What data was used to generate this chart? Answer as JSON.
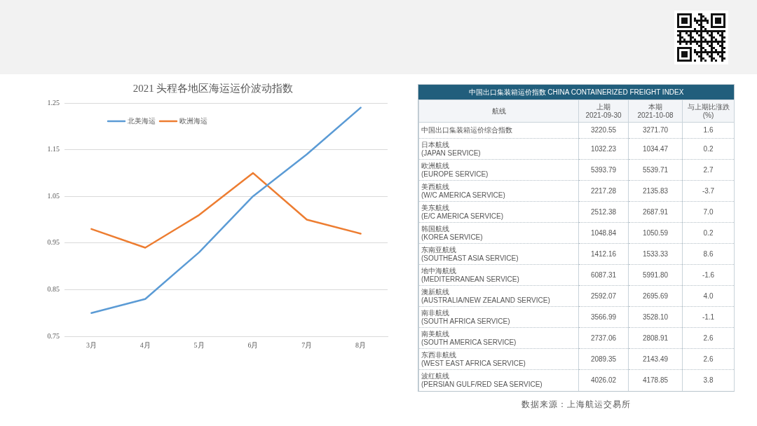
{
  "chart_data": [
    {
      "type": "line",
      "title": "2021 头程各地区海运运价波动指数",
      "categories": [
        "3月",
        "4月",
        "5月",
        "6月",
        "7月",
        "8月"
      ],
      "series": [
        {
          "name": "北美海运",
          "color": "#5b9bd5",
          "values": [
            0.8,
            0.83,
            0.93,
            1.05,
            1.14,
            1.24
          ]
        },
        {
          "name": "欧洲海运",
          "color": "#ed7d31",
          "values": [
            0.98,
            0.94,
            1.01,
            1.1,
            1.0,
            0.97
          ]
        }
      ],
      "ylim": [
        0.75,
        1.25
      ],
      "yticks": [
        0.75,
        0.85,
        0.95,
        1.05,
        1.15,
        1.25
      ],
      "grid": "y",
      "legend": "top left",
      "marker": "none",
      "line_style": "solid"
    },
    {
      "type": "other",
      "title": "中国出口集装箱运价指数 CHINA CONTAINERIZED FREIGHT INDEX",
      "ylabel": "航线",
      "categories": [
        "中国出口集装箱运价综合指数",
        "日本航线\n(JAPAN SERVICE)",
        "欧洲航线\n(EUROPE SERVICE)",
        "美西航线\n(W/C AMERICA SERVICE)",
        "美东航线\n(E/C AMERICA SERVICE)",
        "韩国航线\n(KOREA SERVICE)",
        "东南亚航线\n(SOUTHEAST ASIA SERVICE)",
        "地中海航线\n(MEDITERRANEAN SERVICE)",
        "澳新航线\n(AUSTRALIA/NEW ZEALAND SERVICE)",
        "南非航线\n(SOUTH AFRICA SERVICE)",
        "南美航线\n(SOUTH AMERICA SERVICE)",
        "东西非航线\n(WEST EAST AFRICA SERVICE)",
        "波红航线\n(PERSIAN GULF/RED SEA SERVICE)"
      ],
      "series": [
        {
          "name": "上期\n2021-09-30",
          "values": [
            3220.55,
            1032.23,
            5393.79,
            2217.28,
            2512.38,
            1048.84,
            1412.16,
            6087.31,
            2592.07,
            3566.99,
            2737.06,
            2089.35,
            4026.02
          ],
          "value_labels": [
            "3220.55",
            "1032.23",
            "5393.79",
            "2217.28",
            "2512.38",
            "1048.84",
            "1412.16",
            "6087.31",
            "2592.07",
            "3566.99",
            "2737.06",
            "2089.35",
            "4026.02"
          ]
        },
        {
          "name": "本期\n2021-10-08",
          "values": [
            3271.7,
            1034.47,
            5539.71,
            2135.83,
            2687.91,
            1050.59,
            1533.33,
            5991.8,
            2695.69,
            3528.1,
            2808.91,
            2143.49,
            4178.85
          ],
          "value_labels": [
            "3271.70",
            "1034.47",
            "5539.71",
            "2135.83",
            "2687.91",
            "1050.59",
            "1533.33",
            "5991.80",
            "2695.69",
            "3528.10",
            "2808.91",
            "2143.49",
            "4178.85"
          ]
        },
        {
          "name": "与上期比涨跌\n(%)",
          "values": [
            1.6,
            0.2,
            2.7,
            -3.7,
            7.0,
            0.2,
            8.6,
            -1.6,
            4.0,
            -1.1,
            2.6,
            2.6,
            3.8
          ],
          "value_labels": [
            "1.6",
            "0.2",
            "2.7",
            "-3.7",
            "7.0",
            "0.2",
            "8.6",
            "-1.6",
            "4.0",
            "-1.1",
            "2.6",
            "2.6",
            "3.8"
          ]
        }
      ],
      "annotations": [
        "数据来源：上海航运交易所"
      ]
    }
  ]
}
